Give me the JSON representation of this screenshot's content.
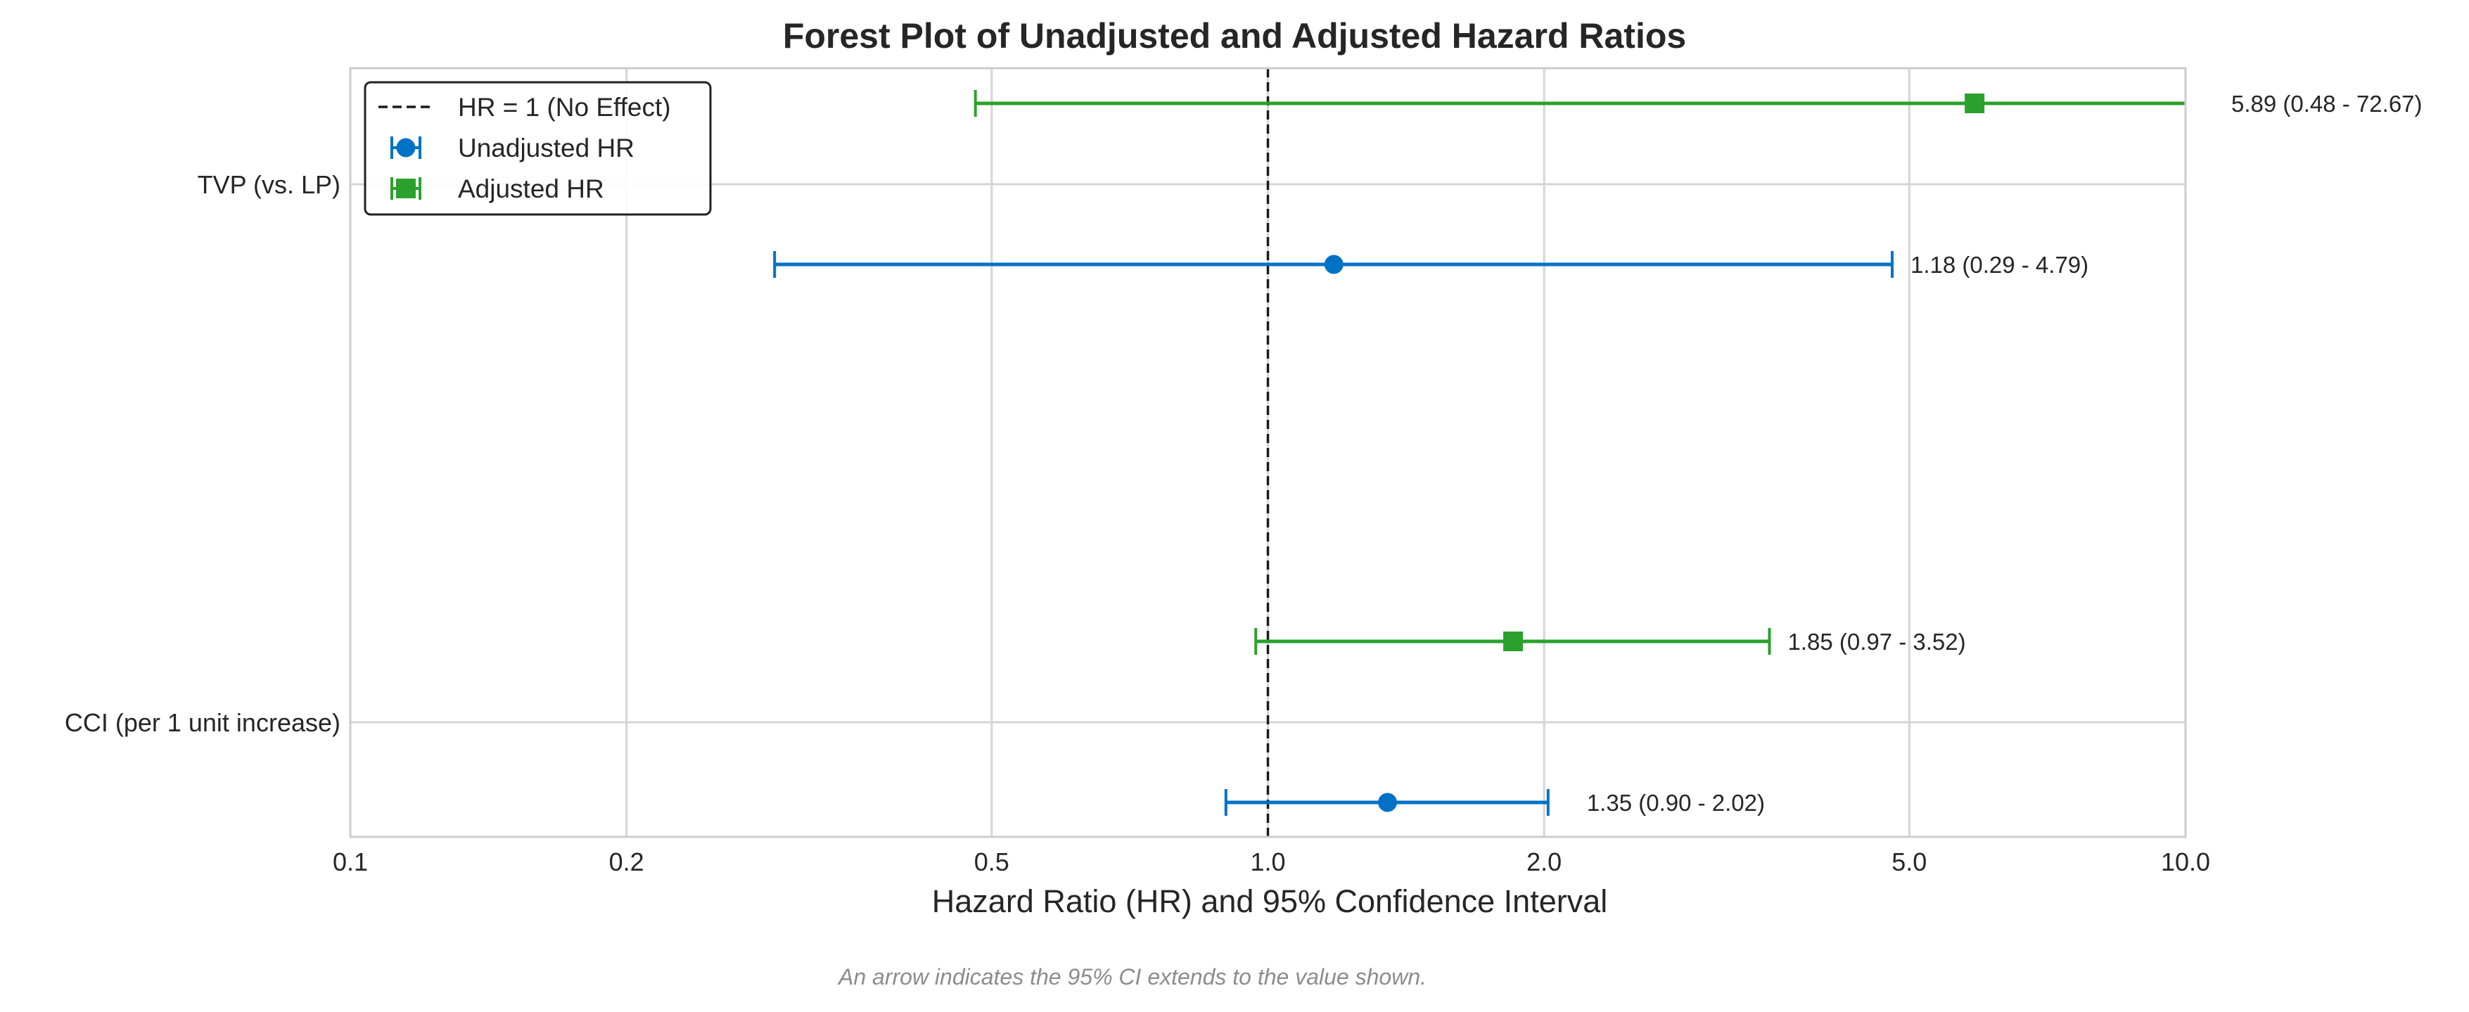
{
  "chart_data": {
    "type": "forest",
    "title": "Forest Plot of Unadjusted and Adjusted Hazard Ratios",
    "xlabel": "Hazard Ratio (HR) and 95% Confidence Interval",
    "ylabel": "",
    "x_scale": "log",
    "xlim": [
      0.1,
      10.0
    ],
    "x_ticks": [
      0.1,
      0.2,
      0.5,
      1.0,
      2.0,
      5.0,
      10.0
    ],
    "x_tick_labels": [
      "0.1",
      "0.2",
      "0.5",
      "1.0",
      "2.0",
      "5.0",
      "10.0"
    ],
    "grid": true,
    "legend_position": "top-left",
    "reference_line": {
      "value": 1.0,
      "label": "HR = 1 (No Effect)",
      "style": "dashed",
      "color": "#1a1a1a"
    },
    "categories": [
      "TVP (vs. LP)",
      "CCI (per 1 unit increase)"
    ],
    "series": [
      {
        "name": "Unadjusted HR",
        "marker": "circle",
        "color": "#0072c6",
        "points": [
          {
            "category": "TVP (vs. LP)",
            "hr": 1.18,
            "lower": 0.29,
            "upper": 4.79,
            "label": "1.18 (0.29 - 4.79)"
          },
          {
            "category": "CCI (per 1 unit increase)",
            "hr": 1.35,
            "lower": 0.9,
            "upper": 2.02,
            "label": "1.35 (0.90 - 2.02)"
          }
        ]
      },
      {
        "name": "Adjusted HR",
        "marker": "square",
        "color": "#2ca02c",
        "points": [
          {
            "category": "TVP (vs. LP)",
            "hr": 5.89,
            "lower": 0.48,
            "upper": 72.67,
            "label": "5.89 (0.48 - 72.67)"
          },
          {
            "category": "CCI (per 1 unit increase)",
            "hr": 1.85,
            "lower": 0.97,
            "upper": 3.52,
            "label": "1.85 (0.97 - 3.52)"
          }
        ]
      }
    ],
    "footnote": "An arrow indicates the 95% CI extends to the value shown."
  }
}
